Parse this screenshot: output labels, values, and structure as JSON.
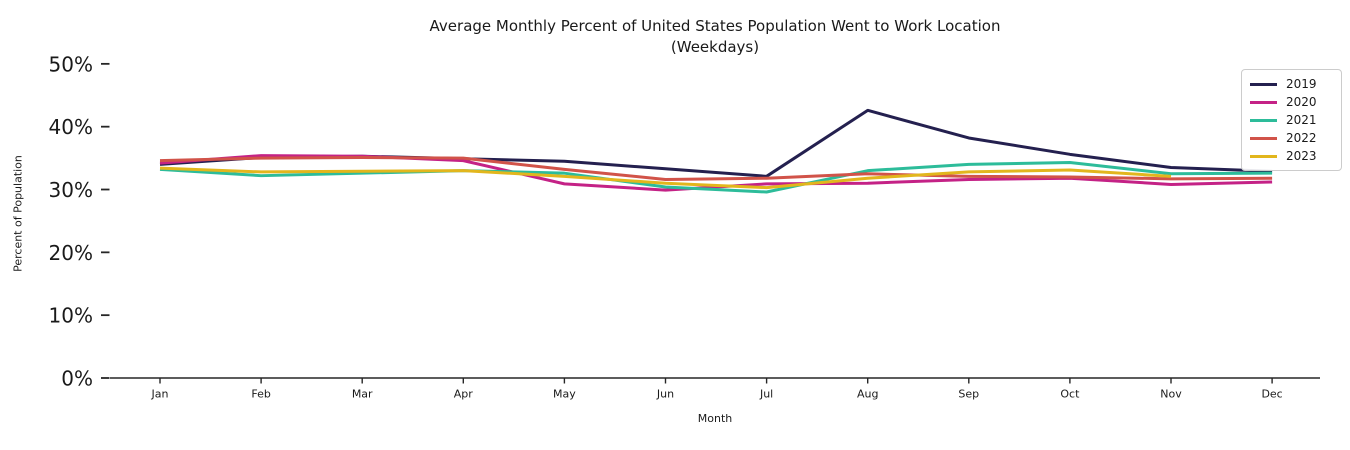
{
  "chart_data": {
    "type": "line",
    "title_line1": "Average Monthly Percent of United States Population Went to Work Location",
    "title_line2": "(Weekdays)",
    "xlabel": "Month",
    "ylabel": "Percent of Population",
    "categories": [
      "Jan",
      "Feb",
      "Mar",
      "Apr",
      "May",
      "Jun",
      "Jul",
      "Aug",
      "Sep",
      "Oct",
      "Nov",
      "Dec"
    ],
    "y_tick_labels": [
      "0%",
      "10%",
      "20%",
      "30%",
      "40%",
      "50%"
    ],
    "y_tick_values": [
      0,
      10,
      20,
      30,
      40,
      50
    ],
    "ylim": [
      0,
      52
    ],
    "grid": false,
    "legend_position": "upper right",
    "series": [
      {
        "name": "2019",
        "color": "#24204f",
        "values": [
          34.0,
          35.1,
          35.3,
          34.9,
          34.5,
          33.3,
          32.1,
          42.6,
          38.2,
          35.6,
          33.5,
          32.9
        ]
      },
      {
        "name": "2020",
        "color": "#c42286",
        "values": [
          34.2,
          35.4,
          35.3,
          34.6,
          30.9,
          29.9,
          30.9,
          31.0,
          31.6,
          31.8,
          30.8,
          31.2
        ]
      },
      {
        "name": "2021",
        "color": "#2dbc9a",
        "values": [
          33.2,
          32.2,
          32.6,
          33.0,
          32.6,
          30.4,
          29.6,
          33.0,
          34.0,
          34.3,
          32.5,
          32.6
        ]
      },
      {
        "name": "2022",
        "color": "#d15349",
        "values": [
          34.6,
          35.0,
          35.1,
          35.0,
          33.2,
          31.6,
          31.8,
          32.5,
          32.1,
          32.0,
          31.7,
          31.8
        ]
      },
      {
        "name": "2023",
        "color": "#e2b61d",
        "values": [
          33.4,
          32.8,
          32.9,
          33.0,
          32.1,
          31.0,
          30.3,
          31.8,
          32.8,
          33.1,
          32.1,
          null
        ]
      }
    ],
    "axis_color": "#262626"
  }
}
